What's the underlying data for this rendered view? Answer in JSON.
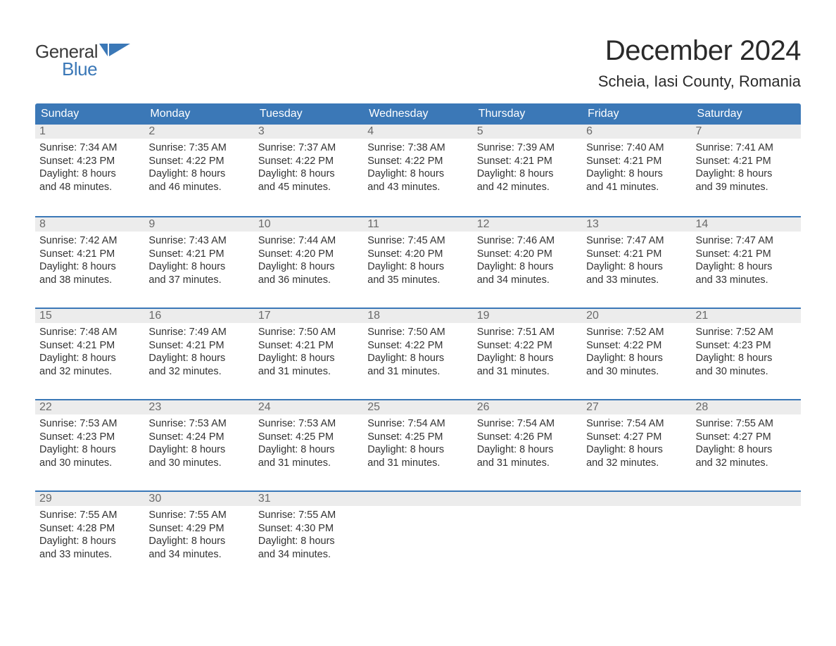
{
  "colors": {
    "header_bg": "#3b78b7",
    "daynum_bg": "#ececec",
    "week_border": "#3b78b7",
    "text_dark": "#2a2a2a",
    "text_body": "#333333",
    "text_daynum": "#6a6a6a",
    "logo_blue": "#3b78b7",
    "logo_gray": "#3a3a3a",
    "page_bg": "#ffffff"
  },
  "logo": {
    "word1": "General",
    "word2": "Blue"
  },
  "title": "December 2024",
  "location": "Scheia, Iasi County, Romania",
  "day_headers": [
    "Sunday",
    "Monday",
    "Tuesday",
    "Wednesday",
    "Thursday",
    "Friday",
    "Saturday"
  ],
  "weeks": [
    [
      {
        "n": "1",
        "sunrise": "Sunrise: 7:34 AM",
        "sunset": "Sunset: 4:23 PM",
        "d1": "Daylight: 8 hours",
        "d2": "and 48 minutes."
      },
      {
        "n": "2",
        "sunrise": "Sunrise: 7:35 AM",
        "sunset": "Sunset: 4:22 PM",
        "d1": "Daylight: 8 hours",
        "d2": "and 46 minutes."
      },
      {
        "n": "3",
        "sunrise": "Sunrise: 7:37 AM",
        "sunset": "Sunset: 4:22 PM",
        "d1": "Daylight: 8 hours",
        "d2": "and 45 minutes."
      },
      {
        "n": "4",
        "sunrise": "Sunrise: 7:38 AM",
        "sunset": "Sunset: 4:22 PM",
        "d1": "Daylight: 8 hours",
        "d2": "and 43 minutes."
      },
      {
        "n": "5",
        "sunrise": "Sunrise: 7:39 AM",
        "sunset": "Sunset: 4:21 PM",
        "d1": "Daylight: 8 hours",
        "d2": "and 42 minutes."
      },
      {
        "n": "6",
        "sunrise": "Sunrise: 7:40 AM",
        "sunset": "Sunset: 4:21 PM",
        "d1": "Daylight: 8 hours",
        "d2": "and 41 minutes."
      },
      {
        "n": "7",
        "sunrise": "Sunrise: 7:41 AM",
        "sunset": "Sunset: 4:21 PM",
        "d1": "Daylight: 8 hours",
        "d2": "and 39 minutes."
      }
    ],
    [
      {
        "n": "8",
        "sunrise": "Sunrise: 7:42 AM",
        "sunset": "Sunset: 4:21 PM",
        "d1": "Daylight: 8 hours",
        "d2": "and 38 minutes."
      },
      {
        "n": "9",
        "sunrise": "Sunrise: 7:43 AM",
        "sunset": "Sunset: 4:21 PM",
        "d1": "Daylight: 8 hours",
        "d2": "and 37 minutes."
      },
      {
        "n": "10",
        "sunrise": "Sunrise: 7:44 AM",
        "sunset": "Sunset: 4:20 PM",
        "d1": "Daylight: 8 hours",
        "d2": "and 36 minutes."
      },
      {
        "n": "11",
        "sunrise": "Sunrise: 7:45 AM",
        "sunset": "Sunset: 4:20 PM",
        "d1": "Daylight: 8 hours",
        "d2": "and 35 minutes."
      },
      {
        "n": "12",
        "sunrise": "Sunrise: 7:46 AM",
        "sunset": "Sunset: 4:20 PM",
        "d1": "Daylight: 8 hours",
        "d2": "and 34 minutes."
      },
      {
        "n": "13",
        "sunrise": "Sunrise: 7:47 AM",
        "sunset": "Sunset: 4:21 PM",
        "d1": "Daylight: 8 hours",
        "d2": "and 33 minutes."
      },
      {
        "n": "14",
        "sunrise": "Sunrise: 7:47 AM",
        "sunset": "Sunset: 4:21 PM",
        "d1": "Daylight: 8 hours",
        "d2": "and 33 minutes."
      }
    ],
    [
      {
        "n": "15",
        "sunrise": "Sunrise: 7:48 AM",
        "sunset": "Sunset: 4:21 PM",
        "d1": "Daylight: 8 hours",
        "d2": "and 32 minutes."
      },
      {
        "n": "16",
        "sunrise": "Sunrise: 7:49 AM",
        "sunset": "Sunset: 4:21 PM",
        "d1": "Daylight: 8 hours",
        "d2": "and 32 minutes."
      },
      {
        "n": "17",
        "sunrise": "Sunrise: 7:50 AM",
        "sunset": "Sunset: 4:21 PM",
        "d1": "Daylight: 8 hours",
        "d2": "and 31 minutes."
      },
      {
        "n": "18",
        "sunrise": "Sunrise: 7:50 AM",
        "sunset": "Sunset: 4:22 PM",
        "d1": "Daylight: 8 hours",
        "d2": "and 31 minutes."
      },
      {
        "n": "19",
        "sunrise": "Sunrise: 7:51 AM",
        "sunset": "Sunset: 4:22 PM",
        "d1": "Daylight: 8 hours",
        "d2": "and 31 minutes."
      },
      {
        "n": "20",
        "sunrise": "Sunrise: 7:52 AM",
        "sunset": "Sunset: 4:22 PM",
        "d1": "Daylight: 8 hours",
        "d2": "and 30 minutes."
      },
      {
        "n": "21",
        "sunrise": "Sunrise: 7:52 AM",
        "sunset": "Sunset: 4:23 PM",
        "d1": "Daylight: 8 hours",
        "d2": "and 30 minutes."
      }
    ],
    [
      {
        "n": "22",
        "sunrise": "Sunrise: 7:53 AM",
        "sunset": "Sunset: 4:23 PM",
        "d1": "Daylight: 8 hours",
        "d2": "and 30 minutes."
      },
      {
        "n": "23",
        "sunrise": "Sunrise: 7:53 AM",
        "sunset": "Sunset: 4:24 PM",
        "d1": "Daylight: 8 hours",
        "d2": "and 30 minutes."
      },
      {
        "n": "24",
        "sunrise": "Sunrise: 7:53 AM",
        "sunset": "Sunset: 4:25 PM",
        "d1": "Daylight: 8 hours",
        "d2": "and 31 minutes."
      },
      {
        "n": "25",
        "sunrise": "Sunrise: 7:54 AM",
        "sunset": "Sunset: 4:25 PM",
        "d1": "Daylight: 8 hours",
        "d2": "and 31 minutes."
      },
      {
        "n": "26",
        "sunrise": "Sunrise: 7:54 AM",
        "sunset": "Sunset: 4:26 PM",
        "d1": "Daylight: 8 hours",
        "d2": "and 31 minutes."
      },
      {
        "n": "27",
        "sunrise": "Sunrise: 7:54 AM",
        "sunset": "Sunset: 4:27 PM",
        "d1": "Daylight: 8 hours",
        "d2": "and 32 minutes."
      },
      {
        "n": "28",
        "sunrise": "Sunrise: 7:55 AM",
        "sunset": "Sunset: 4:27 PM",
        "d1": "Daylight: 8 hours",
        "d2": "and 32 minutes."
      }
    ],
    [
      {
        "n": "29",
        "sunrise": "Sunrise: 7:55 AM",
        "sunset": "Sunset: 4:28 PM",
        "d1": "Daylight: 8 hours",
        "d2": "and 33 minutes."
      },
      {
        "n": "30",
        "sunrise": "Sunrise: 7:55 AM",
        "sunset": "Sunset: 4:29 PM",
        "d1": "Daylight: 8 hours",
        "d2": "and 34 minutes."
      },
      {
        "n": "31",
        "sunrise": "Sunrise: 7:55 AM",
        "sunset": "Sunset: 4:30 PM",
        "d1": "Daylight: 8 hours",
        "d2": "and 34 minutes."
      },
      {
        "empty": true
      },
      {
        "empty": true
      },
      {
        "empty": true
      },
      {
        "empty": true
      }
    ]
  ]
}
